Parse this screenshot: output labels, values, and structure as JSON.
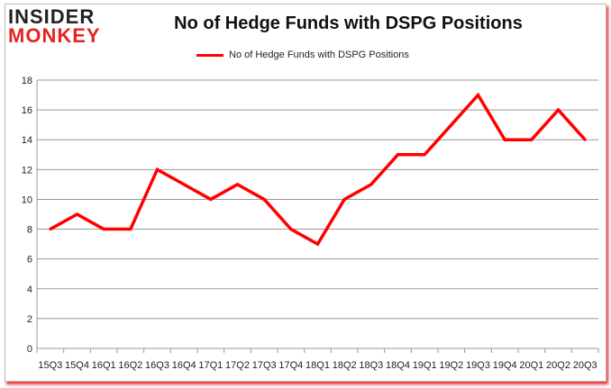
{
  "logo": {
    "line1": "INSIDER",
    "line2": "MONKEY"
  },
  "chart_data": {
    "type": "line",
    "title": "No of Hedge Funds with DSPG Positions",
    "categories": [
      "15Q3",
      "15Q4",
      "16Q1",
      "16Q2",
      "16Q3",
      "16Q4",
      "17Q1",
      "17Q2",
      "17Q3",
      "17Q4",
      "18Q1",
      "18Q2",
      "18Q3",
      "18Q4",
      "19Q1",
      "19Q2",
      "19Q3",
      "19Q4",
      "20Q1",
      "20Q2",
      "20Q3"
    ],
    "series": [
      {
        "name": "No of Hedge Funds with DSPG Positions",
        "color": "#ff0000",
        "values": [
          8,
          9,
          8,
          8,
          12,
          11,
          10,
          11,
          10,
          8,
          7,
          10,
          11,
          13,
          13,
          15,
          17,
          14,
          14,
          16,
          14
        ]
      }
    ],
    "ylim": [
      0,
      18
    ],
    "yticks": [
      0,
      2,
      4,
      6,
      8,
      10,
      12,
      14,
      16,
      18
    ],
    "grid": true,
    "legend": "top-center",
    "xlabel": "",
    "ylabel": ""
  }
}
